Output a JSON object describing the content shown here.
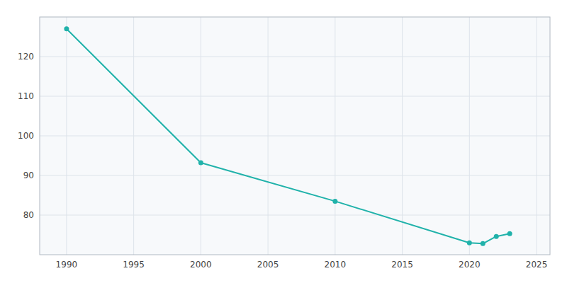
{
  "chart_data": {
    "type": "line",
    "x": [
      1990,
      2000,
      2010,
      2020,
      2021,
      2022,
      2023
    ],
    "values": [
      127.0,
      93.2,
      83.5,
      73.0,
      72.8,
      74.6,
      75.3
    ],
    "color": "#20B2AA",
    "marker": "circle",
    "xlim": [
      1988,
      2026
    ],
    "ylim": [
      70,
      130
    ],
    "xticks": [
      1990,
      1995,
      2000,
      2005,
      2010,
      2015,
      2020,
      2025
    ],
    "yticks": [
      80,
      90,
      100,
      110,
      120
    ],
    "grid": true
  }
}
